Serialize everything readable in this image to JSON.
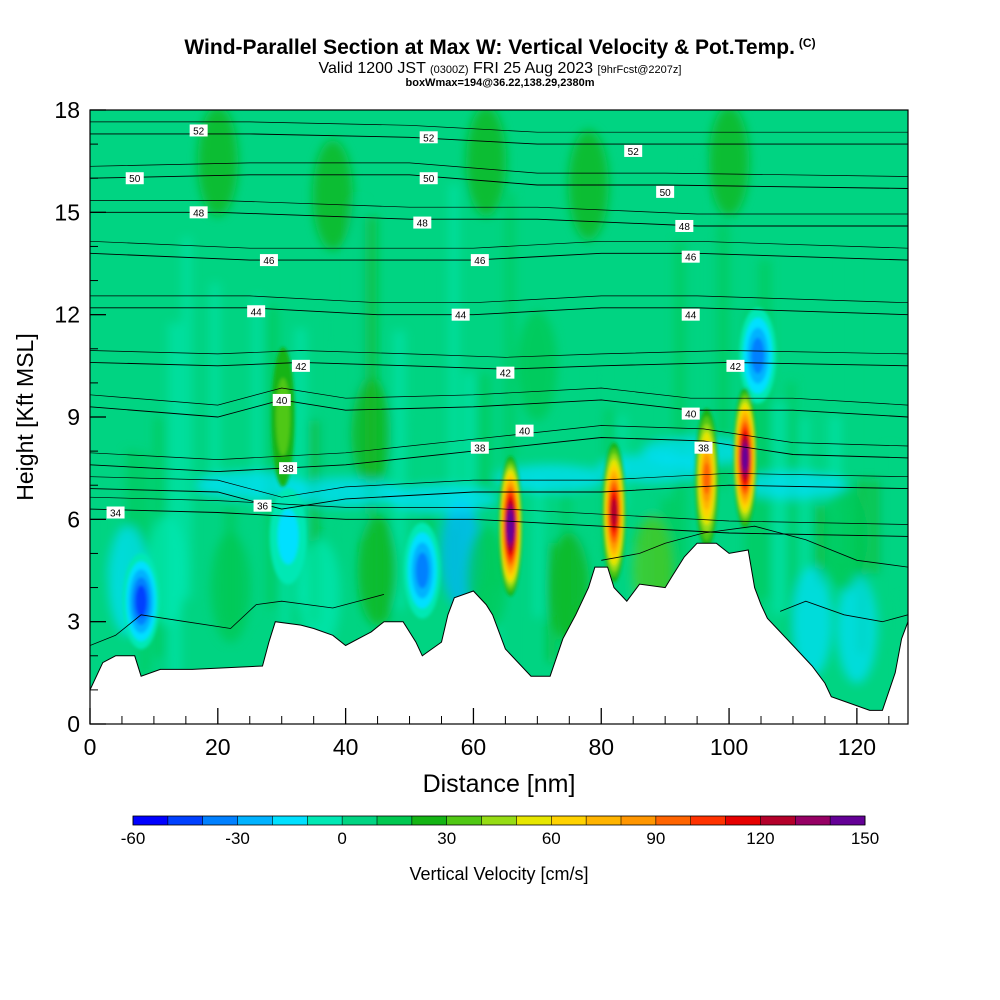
{
  "header": {
    "title": "Wind-Parallel Section at Max W: Vertical Velocity & Pot.Temp.",
    "title_mark": "(C)",
    "subtitle_a": "Valid 1200 JST",
    "subtitle_b": "(0300Z)",
    "subtitle_c": "FRI 25 Aug 2023",
    "subtitle_d": "[9hrFcst@2207z]",
    "subtitle2": "boxWmax=194@36.22,138.29,2380m"
  },
  "chart_data": {
    "type": "heatmap",
    "xlabel": "Distance [nm]",
    "ylabel": "Height [Kft MSL]",
    "xlim": [
      0,
      128
    ],
    "ylim": [
      0,
      18
    ],
    "xticks": [
      0,
      20,
      40,
      60,
      80,
      100,
      120
    ],
    "yticks": [
      0,
      3,
      6,
      9,
      12,
      15,
      18
    ],
    "terrain": [
      [
        0,
        1.0
      ],
      [
        2,
        1.8
      ],
      [
        4,
        2.0
      ],
      [
        7,
        2.0
      ],
      [
        8,
        1.4
      ],
      [
        11,
        1.6
      ],
      [
        16,
        1.6
      ],
      [
        27,
        1.7
      ],
      [
        28,
        2.4
      ],
      [
        29,
        3.0
      ],
      [
        33,
        2.9
      ],
      [
        35,
        2.8
      ],
      [
        38,
        2.6
      ],
      [
        40,
        2.3
      ],
      [
        44,
        2.7
      ],
      [
        46,
        3.0
      ],
      [
        49,
        3.0
      ],
      [
        51,
        2.4
      ],
      [
        52,
        2.0
      ],
      [
        55,
        2.4
      ],
      [
        56,
        3.2
      ],
      [
        57,
        3.7
      ],
      [
        60,
        3.9
      ],
      [
        62,
        3.5
      ],
      [
        63,
        3.2
      ],
      [
        65,
        2.2
      ],
      [
        67,
        1.8
      ],
      [
        69,
        1.4
      ],
      [
        72,
        1.4
      ],
      [
        74,
        2.5
      ],
      [
        76,
        3.2
      ],
      [
        78,
        4.0
      ],
      [
        79,
        4.6
      ],
      [
        81,
        4.6
      ],
      [
        82,
        4.0
      ],
      [
        83,
        3.8
      ],
      [
        84,
        3.6
      ],
      [
        86,
        4.1
      ],
      [
        90,
        4.0
      ],
      [
        91,
        4.3
      ],
      [
        93,
        4.9
      ],
      [
        95,
        5.3
      ],
      [
        98,
        5.3
      ],
      [
        100,
        5.0
      ],
      [
        103,
        5.1
      ],
      [
        104,
        4.0
      ],
      [
        105,
        3.5
      ],
      [
        106,
        3.1
      ],
      [
        108,
        2.7
      ],
      [
        110,
        2.3
      ],
      [
        113,
        1.7
      ],
      [
        115,
        1.2
      ],
      [
        116,
        0.8
      ],
      [
        119,
        0.6
      ],
      [
        122,
        0.4
      ],
      [
        124,
        0.4
      ],
      [
        126,
        1.5
      ],
      [
        127,
        2.5
      ],
      [
        128,
        3.0
      ]
    ],
    "updrafts": [
      {
        "x": 65.8,
        "y": 5.8,
        "w": 150
      },
      {
        "x": 82.0,
        "y": 6.2,
        "w": 120
      },
      {
        "x": 96.5,
        "y": 7.2,
        "w": 90
      },
      {
        "x": 102.5,
        "y": 7.8,
        "w": 140
      },
      {
        "x": 30.2,
        "y": 9.0,
        "w": 35
      }
    ],
    "downdrafts": [
      {
        "x": 8,
        "y": 3.6,
        "w": -55
      },
      {
        "x": 52,
        "y": 4.5,
        "w": -40
      },
      {
        "x": 104.5,
        "y": 10.8,
        "w": -40
      },
      {
        "x": 31,
        "y": 5.5,
        "w": -25
      }
    ],
    "isentropes": [
      {
        "label": "34",
        "pts": [
          [
            0,
            6.3
          ],
          [
            20,
            6.2
          ],
          [
            40,
            6.0
          ],
          [
            60,
            6.0
          ],
          [
            80,
            5.8
          ],
          [
            100,
            5.6
          ],
          [
            128,
            5.5
          ]
        ]
      },
      {
        "label": "36",
        "pts": [
          [
            0,
            6.9
          ],
          [
            20,
            6.8
          ],
          [
            30,
            6.3
          ],
          [
            40,
            6.6
          ],
          [
            60,
            6.8
          ],
          [
            80,
            6.8
          ],
          [
            100,
            7.0
          ],
          [
            128,
            6.9
          ]
        ]
      },
      {
        "label": "38",
        "pts": [
          [
            0,
            7.6
          ],
          [
            20,
            7.4
          ],
          [
            30,
            7.5
          ],
          [
            40,
            7.6
          ],
          [
            60,
            8.0
          ],
          [
            80,
            8.4
          ],
          [
            96,
            8.3
          ],
          [
            110,
            7.9
          ],
          [
            128,
            7.8
          ]
        ]
      },
      {
        "label": "40",
        "pts": [
          [
            0,
            9.3
          ],
          [
            20,
            9.0
          ],
          [
            30,
            9.5
          ],
          [
            40,
            9.2
          ],
          [
            60,
            9.3
          ],
          [
            80,
            9.5
          ],
          [
            94,
            9.2
          ],
          [
            110,
            9.2
          ],
          [
            128,
            9.0
          ]
        ]
      },
      {
        "label": "42",
        "pts": [
          [
            0,
            10.6
          ],
          [
            20,
            10.5
          ],
          [
            33,
            10.6
          ],
          [
            50,
            10.5
          ],
          [
            65,
            10.4
          ],
          [
            80,
            10.5
          ],
          [
            100,
            10.6
          ],
          [
            128,
            10.5
          ]
        ]
      },
      {
        "label": "44",
        "pts": [
          [
            0,
            12.2
          ],
          [
            25,
            12.2
          ],
          [
            45,
            12.0
          ],
          [
            60,
            12.0
          ],
          [
            80,
            12.2
          ],
          [
            95,
            12.2
          ],
          [
            128,
            12.0
          ]
        ]
      },
      {
        "label": "46",
        "pts": [
          [
            0,
            13.8
          ],
          [
            25,
            13.6
          ],
          [
            45,
            13.6
          ],
          [
            60,
            13.6
          ],
          [
            80,
            13.8
          ],
          [
            95,
            13.8
          ],
          [
            128,
            13.6
          ]
        ]
      },
      {
        "label": "48",
        "pts": [
          [
            0,
            15.0
          ],
          [
            20,
            15.0
          ],
          [
            50,
            14.8
          ],
          [
            70,
            14.8
          ],
          [
            95,
            14.6
          ],
          [
            128,
            14.6
          ]
        ]
      },
      {
        "label": "50",
        "pts": [
          [
            0,
            16.0
          ],
          [
            25,
            16.1
          ],
          [
            50,
            16.1
          ],
          [
            70,
            15.8
          ],
          [
            90,
            15.8
          ],
          [
            128,
            15.7
          ]
        ]
      },
      {
        "label": "52",
        "pts": [
          [
            0,
            17.3
          ],
          [
            25,
            17.3
          ],
          [
            50,
            17.2
          ],
          [
            70,
            17.0
          ],
          [
            90,
            17.0
          ],
          [
            128,
            17.0
          ]
        ]
      }
    ],
    "isentrope_labels": [
      {
        "text": "52",
        "x": 17,
        "y": 17.4
      },
      {
        "text": "50",
        "x": 7,
        "y": 16.0
      },
      {
        "text": "48",
        "x": 17,
        "y": 15.0
      },
      {
        "text": "52",
        "x": 53,
        "y": 17.2
      },
      {
        "text": "50",
        "x": 53,
        "y": 16.0
      },
      {
        "text": "48",
        "x": 52,
        "y": 14.7
      },
      {
        "text": "52",
        "x": 85,
        "y": 16.8
      },
      {
        "text": "50",
        "x": 90,
        "y": 15.6
      },
      {
        "text": "48",
        "x": 93,
        "y": 14.6
      },
      {
        "text": "46",
        "x": 28,
        "y": 13.6
      },
      {
        "text": "44",
        "x": 26,
        "y": 12.1
      },
      {
        "text": "46",
        "x": 61,
        "y": 13.6
      },
      {
        "text": "44",
        "x": 58,
        "y": 12.0
      },
      {
        "text": "46",
        "x": 94,
        "y": 13.7
      },
      {
        "text": "44",
        "x": 94,
        "y": 12.0
      },
      {
        "text": "42",
        "x": 33,
        "y": 10.5
      },
      {
        "text": "40",
        "x": 30,
        "y": 9.5
      },
      {
        "text": "42",
        "x": 65,
        "y": 10.3
      },
      {
        "text": "40",
        "x": 68,
        "y": 8.6
      },
      {
        "text": "42",
        "x": 101,
        "y": 10.5
      },
      {
        "text": "40",
        "x": 94,
        "y": 9.1
      },
      {
        "text": "38",
        "x": 31,
        "y": 7.5
      },
      {
        "text": "36",
        "x": 27,
        "y": 6.4
      },
      {
        "text": "38",
        "x": 61,
        "y": 8.1
      },
      {
        "text": "38",
        "x": 96,
        "y": 8.1
      },
      {
        "text": "34",
        "x": 4,
        "y": 6.2
      }
    ],
    "colorbar": {
      "label": "Vertical Velocity [cm/s]",
      "min": -60,
      "max": 150,
      "step": 10,
      "tick_labels": [
        "-60",
        "-30",
        "0",
        "30",
        "60",
        "90",
        "120",
        "150"
      ],
      "colors": [
        "#0000ff",
        "#0040ff",
        "#0080ff",
        "#00b2ff",
        "#00e0ff",
        "#00e8b4",
        "#00d482",
        "#00c850",
        "#14b414",
        "#50c814",
        "#96dc14",
        "#e6e600",
        "#ffd200",
        "#ffb400",
        "#ff9600",
        "#ff6400",
        "#ff3200",
        "#e60000",
        "#b4002a",
        "#960064",
        "#640096"
      ]
    }
  }
}
